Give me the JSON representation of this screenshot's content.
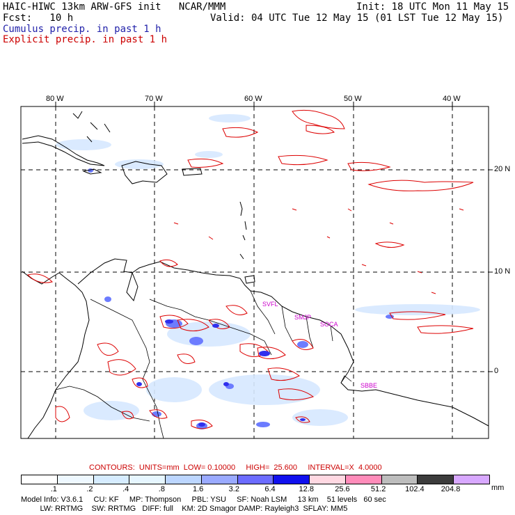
{
  "header": {
    "line1_left": "HAIC-HIWC 13km ARW-GFS init   NCAR/MMM",
    "line1_right": "Init: 18 UTC Mon 11 May 15",
    "line2_left": "Fcst:   10 h",
    "line2_right": "Valid: 04 UTC Tue 12 May 15 (01 LST Tue 12 May 15)",
    "line3": "Cumulus precip. in past 1 h",
    "line4": "Explicit precip. in past 1 h"
  },
  "map": {
    "lon_labels": [
      "80 W",
      "70 W",
      "60 W",
      "50 W",
      "40 W"
    ],
    "lat_labels": [
      "20 N",
      "10 N",
      "0"
    ],
    "stations": [
      "SVFL",
      "SMJP",
      "SOCA",
      "SBBE"
    ],
    "colors": {
      "coast": "#000000",
      "explicit": "#dd0000",
      "station": "#cc00cc",
      "cumulus": "#4455ee"
    }
  },
  "legend": {
    "contours_text": "CONTOURS:  UNITS=mm  LOW= 0.10000     HIGH=  25.600     INTERVAL=X  4.0000",
    "units": "mm",
    "ticks": [
      ".1",
      ".2",
      ".4",
      ".8",
      "1.6",
      "3.2",
      "6.4",
      "12.8",
      "25.6",
      "51.2",
      "102.4",
      "204.8"
    ],
    "colors": [
      "#ffffff",
      "#eef8ff",
      "#d6ecff",
      "#e6f6ff",
      "#bcd6ff",
      "#9aaaff",
      "#6c6cff",
      "#1010ee",
      "#ffd8e2",
      "#ff8cba",
      "#bdbdbd",
      "#3c3c3c",
      "#d8a8ff"
    ]
  },
  "model_info": {
    "line1": "Model Info: V3.6.1     CU: KF     MP: Thompson     PBL: YSU     SF: Noah LSM     13 km    51 levels   60 sec",
    "line2": "         LW: RRTMG    SW: RRTMG   DIFF: full    KM: 2D Smagor DAMP: Rayleigh3  SFLAY: MM5"
  }
}
